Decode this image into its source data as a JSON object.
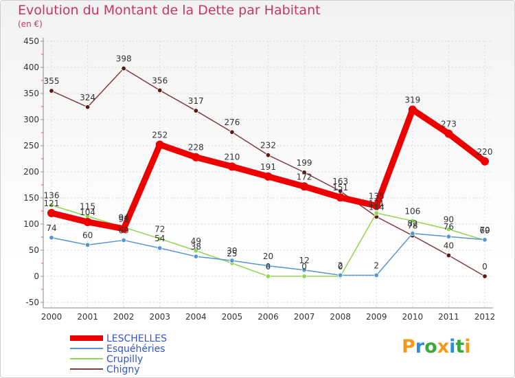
{
  "title": "Evolution du Montant de la Dette par Habitant",
  "subtitle": "(en €)",
  "logo": {
    "letters": [
      "P",
      "r",
      "o",
      "x",
      "i",
      "t",
      "i"
    ],
    "colors": [
      "#f39a1e",
      "#2a8fd6",
      "#3aa83a",
      "#f39a1e",
      "#2a8fd6",
      "#3aa83a",
      "#f39a1e"
    ]
  },
  "chart_data": {
    "type": "line",
    "x": [
      "2000",
      "2001",
      "2002",
      "2003",
      "2004",
      "2005",
      "2006",
      "2007",
      "2008",
      "2009",
      "2010",
      "2011",
      "2012"
    ],
    "ylim": [
      -50,
      450
    ],
    "yticks": [
      "450",
      "400",
      "350",
      "300",
      "250",
      "200",
      "150",
      "100",
      "50",
      "0",
      "-50"
    ],
    "grid": true,
    "legend_position": "bottom-left",
    "series": [
      {
        "name": "LESCHELLES",
        "color": "#ee0000",
        "values": [
          121,
          104,
          91,
          252,
          228,
          210,
          191,
          172,
          151,
          135,
          319,
          273,
          220
        ],
        "labels": [
          "121",
          "104",
          "91",
          "252",
          "228",
          "210",
          "191",
          "172",
          "151",
          "135",
          "319",
          "273",
          "220"
        ]
      },
      {
        "name": "Esquéhéries",
        "color": "#5595d0",
        "values": [
          74,
          60,
          69,
          54,
          38,
          30,
          20,
          12,
          2,
          2,
          82,
          76,
          70
        ],
        "labels": [
          "74",
          "60",
          "69",
          "54",
          "38",
          "30",
          "20",
          "12",
          "2",
          "2",
          "82",
          "76",
          "70"
        ]
      },
      {
        "name": "Crupilly",
        "color": "#8fd655",
        "values": [
          136,
          115,
          94,
          72,
          49,
          25,
          0,
          0,
          0,
          121,
          106,
          90,
          69
        ],
        "labels": [
          "136",
          "115",
          "94",
          "72",
          "49",
          "25",
          "0",
          "0",
          "0",
          "121",
          "106",
          "90",
          "69"
        ]
      },
      {
        "name": "Chigny",
        "color": "#803c3c",
        "values": [
          355,
          324,
          398,
          356,
          317,
          276,
          232,
          199,
          163,
          114,
          78,
          40,
          0
        ],
        "labels": [
          "355",
          "324",
          "398",
          "356",
          "317",
          "276",
          "232",
          "199",
          "163",
          "114",
          "78",
          "40",
          "0"
        ]
      }
    ]
  }
}
